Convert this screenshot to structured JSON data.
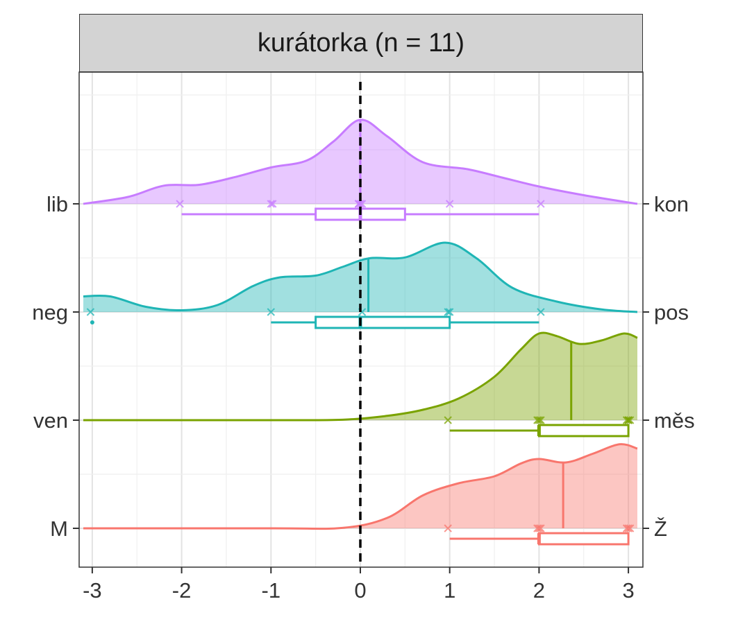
{
  "chart_data": {
    "type": "ridgeline",
    "facet_title": "kurátorka (n = 11)",
    "xlabel": "",
    "ylabel": "",
    "xlim": [
      -3.1,
      3.1
    ],
    "x_ticks": [
      -3,
      -2,
      -1,
      0,
      1,
      2,
      3
    ],
    "x_tick_labels": [
      "-3",
      "-2",
      "-1",
      "0",
      "1",
      "2",
      "3"
    ],
    "reference_line_x": 0,
    "grid": true,
    "series": [
      {
        "left_label": "lib",
        "right_label": "kon",
        "color": "#c77cff",
        "points": [
          -2,
          -1,
          -1,
          0,
          0,
          0,
          0,
          1,
          2
        ],
        "density": [
          [
            -3.1,
            0.0
          ],
          [
            -2.6,
            0.08
          ],
          [
            -2.2,
            0.21
          ],
          [
            -1.8,
            0.22
          ],
          [
            -1.4,
            0.31
          ],
          [
            -1.0,
            0.42
          ],
          [
            -0.6,
            0.5
          ],
          [
            -0.3,
            0.72
          ],
          [
            0.0,
            0.97
          ],
          [
            0.3,
            0.78
          ],
          [
            0.7,
            0.48
          ],
          [
            1.2,
            0.4
          ],
          [
            1.6,
            0.3
          ],
          [
            2.0,
            0.2
          ],
          [
            2.5,
            0.1
          ],
          [
            3.1,
            0.0
          ]
        ],
        "mean": 0,
        "box": {
          "min": -2,
          "q1": -0.5,
          "median": 0,
          "q3": 0.5,
          "max": 2
        }
      },
      {
        "left_label": "neg",
        "right_label": "pos",
        "color": "#1fb5b5",
        "points": [
          -3,
          -1,
          0,
          1,
          1,
          2
        ],
        "density": [
          [
            -3.1,
            0.18
          ],
          [
            -2.8,
            0.18
          ],
          [
            -2.4,
            0.06
          ],
          [
            -2.0,
            0.02
          ],
          [
            -1.6,
            0.08
          ],
          [
            -1.2,
            0.3
          ],
          [
            -0.9,
            0.4
          ],
          [
            -0.5,
            0.42
          ],
          [
            -0.2,
            0.52
          ],
          [
            0.1,
            0.62
          ],
          [
            0.5,
            0.63
          ],
          [
            0.95,
            0.8
          ],
          [
            1.3,
            0.62
          ],
          [
            1.7,
            0.28
          ],
          [
            2.2,
            0.12
          ],
          [
            2.7,
            0.03
          ],
          [
            3.1,
            0.0
          ]
        ],
        "mean": 0.09,
        "outliers": [
          -3
        ],
        "box": {
          "min": -1,
          "q1": -0.5,
          "median": 0,
          "q3": 1,
          "max": 2
        }
      },
      {
        "left_label": "ven",
        "right_label": "měs",
        "color": "#7aa300",
        "points": [
          1,
          2,
          2,
          2,
          3,
          3,
          3,
          3
        ],
        "density": [
          [
            -3.1,
            0.0
          ],
          [
            -1.0,
            0.0
          ],
          [
            -0.2,
            0.005
          ],
          [
            0.3,
            0.05
          ],
          [
            0.7,
            0.12
          ],
          [
            1.1,
            0.25
          ],
          [
            1.5,
            0.5
          ],
          [
            1.8,
            0.82
          ],
          [
            2.0,
            1.0
          ],
          [
            2.2,
            0.97
          ],
          [
            2.45,
            0.88
          ],
          [
            2.7,
            0.92
          ],
          [
            2.95,
            1.0
          ],
          [
            3.1,
            0.95
          ]
        ],
        "mean": 2.36,
        "box": {
          "min": 1,
          "q1": 2,
          "median": 2,
          "q3": 3,
          "max": 3
        }
      },
      {
        "left_label": "M",
        "right_label": "Ž",
        "color": "#f8766d",
        "points": [
          1,
          2,
          2,
          2,
          3,
          3,
          3
        ],
        "density": [
          [
            -3.1,
            0.0
          ],
          [
            -1.0,
            0.0
          ],
          [
            -0.2,
            0.005
          ],
          [
            0.3,
            0.12
          ],
          [
            0.7,
            0.38
          ],
          [
            1.1,
            0.52
          ],
          [
            1.5,
            0.6
          ],
          [
            1.8,
            0.75
          ],
          [
            2.0,
            0.8
          ],
          [
            2.3,
            0.76
          ],
          [
            2.6,
            0.86
          ],
          [
            2.9,
            0.97
          ],
          [
            3.1,
            0.92
          ]
        ],
        "mean": 2.27,
        "box": {
          "min": 1,
          "q1": 2,
          "median": 2,
          "q3": 3,
          "max": 3
        }
      }
    ]
  }
}
